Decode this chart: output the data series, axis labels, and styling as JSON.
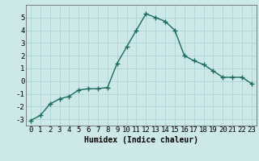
{
  "x": [
    0,
    1,
    2,
    3,
    4,
    5,
    6,
    7,
    8,
    9,
    10,
    11,
    12,
    13,
    14,
    15,
    16,
    17,
    18,
    19,
    20,
    21,
    22,
    23
  ],
  "y": [
    -3.1,
    -2.7,
    -1.8,
    -1.4,
    -1.2,
    -0.7,
    -0.6,
    -0.6,
    -0.5,
    1.4,
    2.7,
    4.0,
    5.3,
    5.0,
    4.7,
    4.0,
    2.0,
    1.6,
    1.3,
    0.8,
    0.3,
    0.3,
    0.3,
    -0.2
  ],
  "xlim": [
    -0.5,
    23.5
  ],
  "ylim": [
    -3.5,
    6.0
  ],
  "yticks": [
    -3,
    -2,
    -1,
    0,
    1,
    2,
    3,
    4,
    5
  ],
  "xticks": [
    0,
    1,
    2,
    3,
    4,
    5,
    6,
    7,
    8,
    9,
    10,
    11,
    12,
    13,
    14,
    15,
    16,
    17,
    18,
    19,
    20,
    21,
    22,
    23
  ],
  "xlabel": "Humidex (Indice chaleur)",
  "bg_color": "#cce8e8",
  "grid_color": "#aed4d4",
  "line_color": "#1a6b5e",
  "marker": "+",
  "marker_size": 4,
  "line_width": 1.0,
  "xlabel_fontsize": 7,
  "tick_fontsize": 6.5
}
